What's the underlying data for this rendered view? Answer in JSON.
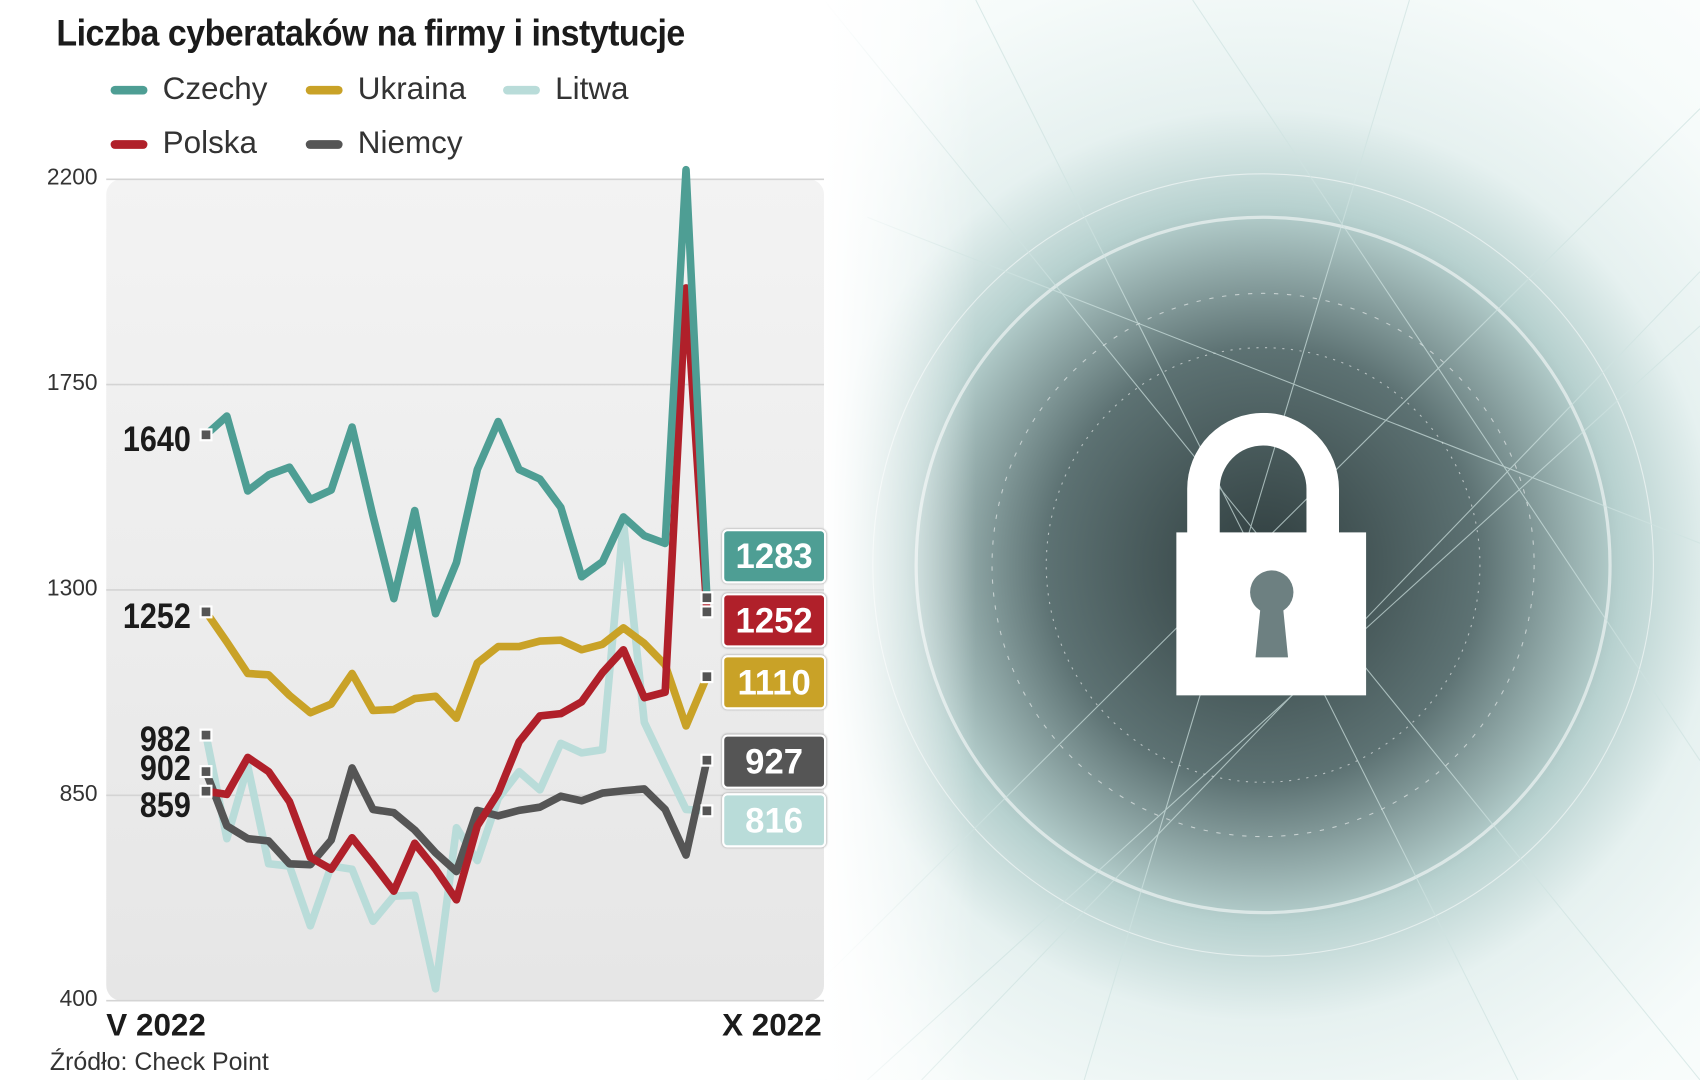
{
  "chart_data": {
    "type": "line",
    "title": "Liczba cyberataków na firmy i instytucje",
    "x_start_label": "V 2022",
    "x_end_label": "X 2022",
    "ylim": [
      400,
      2200
    ],
    "yticks": [
      2200,
      1750,
      1300,
      850,
      400
    ],
    "grid": true,
    "legend_position": "top-left",
    "source": "Źródło: Check Point",
    "series": [
      {
        "name": "Czechy",
        "color": "#4e9e94",
        "start_label": "1640",
        "end_label": "1283",
        "values": [
          1640,
          1681,
          1517,
          1552,
          1569,
          1498,
          1519,
          1657,
          1462,
          1281,
          1474,
          1248,
          1360,
          1564,
          1669,
          1564,
          1543,
          1481,
          1329,
          1362,
          1460,
          1419,
          1402,
          2221,
          1283
        ]
      },
      {
        "name": "Ukraina",
        "color": "#c9a227",
        "start_label": "1252",
        "end_label": "1110",
        "values": [
          1252,
          1186,
          1117,
          1114,
          1069,
          1031,
          1050,
          1117,
          1036,
          1038,
          1062,
          1067,
          1019,
          1140,
          1176,
          1176,
          1188,
          1190,
          1169,
          1181,
          1217,
          1183,
          1136,
          1002,
          1110
        ]
      },
      {
        "name": "Litwa",
        "color": "#b9dcd9",
        "start_label": "982",
        "end_label": "816",
        "values": [
          982,
          755,
          914,
          700,
          695,
          564,
          695,
          688,
          574,
          629,
          631,
          426,
          779,
          707,
          843,
          902,
          862,
          964,
          943,
          950,
          1450,
          1010,
          914,
          819,
          816
        ]
      },
      {
        "name": "Polska",
        "color": "#b0202a",
        "start_label": "859",
        "end_label": "1252",
        "values": [
          859,
          852,
          933,
          902,
          836,
          714,
          688,
          757,
          700,
          640,
          745,
          688,
          621,
          783,
          855,
          967,
          1024,
          1029,
          1055,
          1119,
          1169,
          1064,
          1076,
          1962,
          1252
        ]
      },
      {
        "name": "Niemcy",
        "color": "#555555",
        "start_label": "902",
        "end_label": "927",
        "values": [
          902,
          783,
          755,
          750,
          700,
          698,
          752,
          910,
          819,
          812,
          774,
          724,
          683,
          817,
          805,
          817,
          824,
          848,
          838,
          855,
          860,
          864,
          819,
          719,
          927
        ]
      }
    ]
  },
  "decoration": {
    "icon": "padlock-globe-icon"
  }
}
